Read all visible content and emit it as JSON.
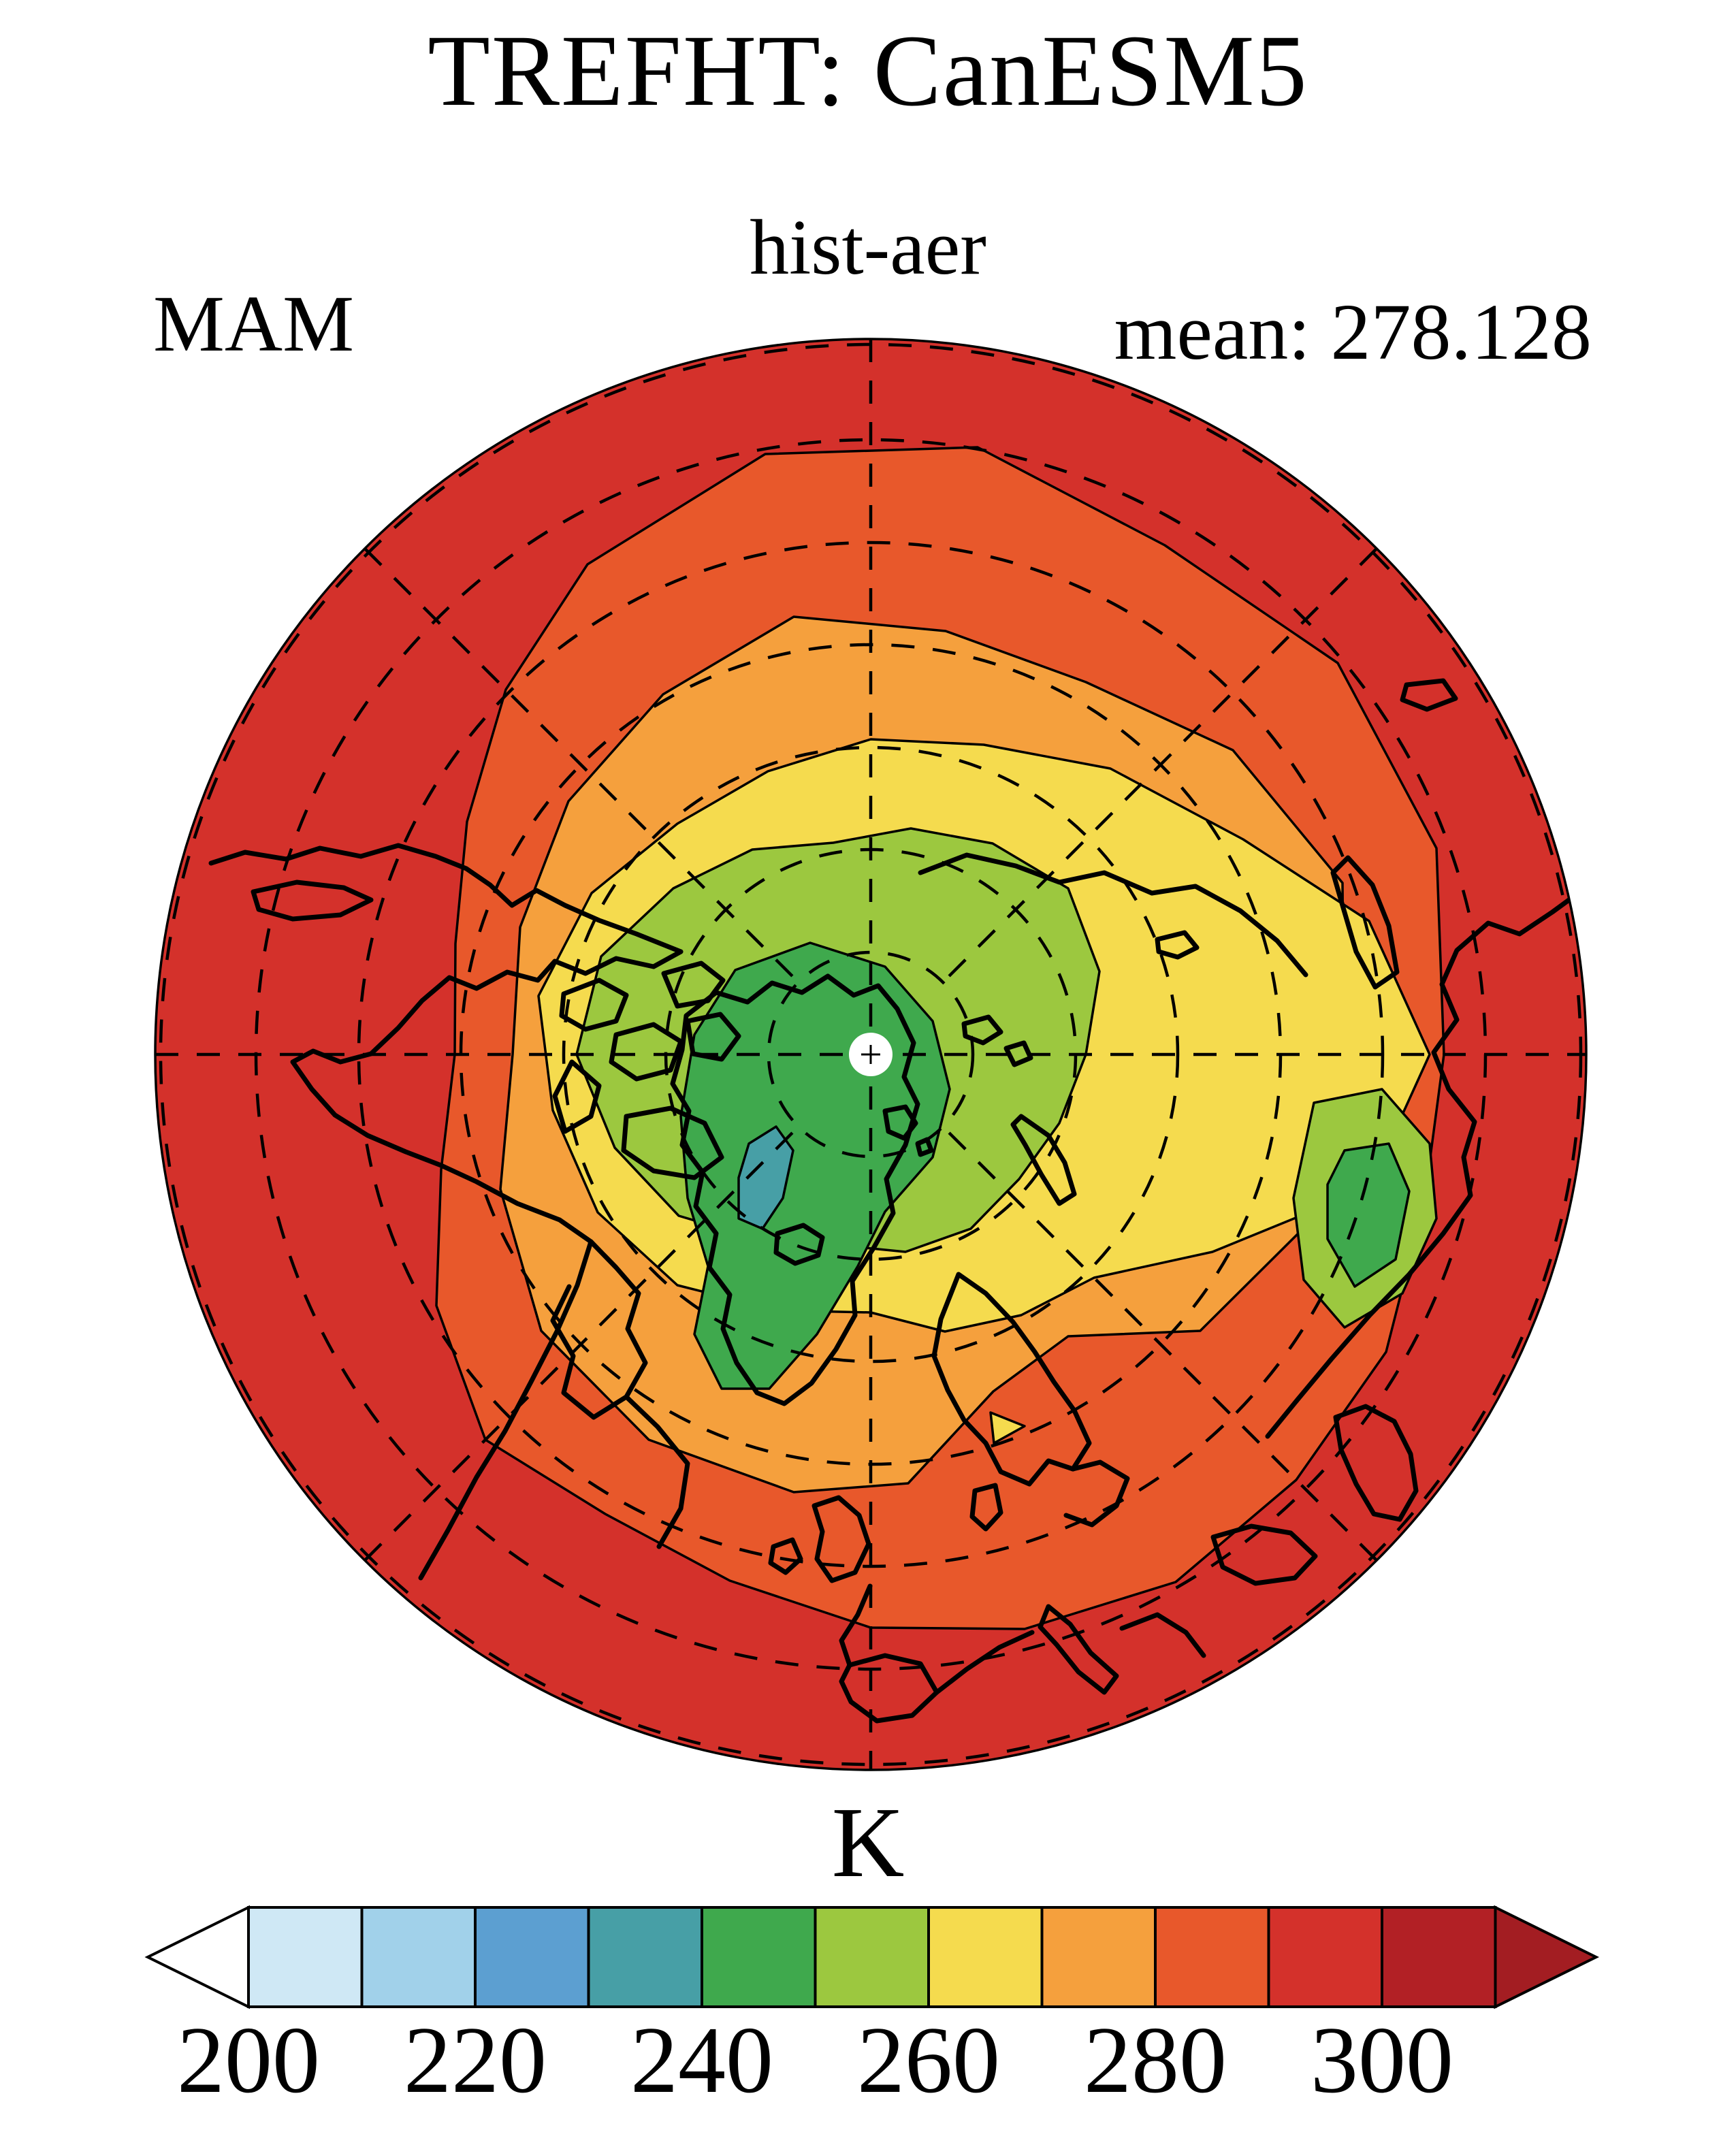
{
  "header": {
    "title": "TREFHT: CanESM5",
    "subtitle": "hist-aer",
    "season": "MAM",
    "mean_label": "mean: 278.128"
  },
  "colorbar": {
    "title": "K",
    "tick_labels": [
      "200",
      "220",
      "240",
      "260",
      "280",
      "300"
    ],
    "box_colors": [
      "#cfe8f5",
      "#a1d1ea",
      "#5c9fd1",
      "#479fa6",
      "#3fa94d",
      "#9cc83f",
      "#f5db4e",
      "#f5a03d",
      "#e8582b",
      "#d4312b",
      "#b22025"
    ],
    "under_color": "#ffffff",
    "over_color": "#a31d22",
    "outline_color": "#000000"
  },
  "palette": {
    "band_230_240": "#479fa6",
    "band_240_250": "#3fa94d",
    "band_250_260": "#9cc83f",
    "band_260_270": "#f5db4e",
    "band_270_280": "#f5a03d",
    "band_280_290": "#e8582b",
    "band_290_300": "#d4312b"
  },
  "chart_data": {
    "type": "filled_contour_map",
    "title": "TREFHT: CanESM5",
    "variable": "TREFHT",
    "model": "CanESM5",
    "experiment": "hist-aer",
    "season": "MAM",
    "mean": 278.128,
    "units": "K",
    "projection": "north_polar_stereographic",
    "grid": "dashed polar graticule, meridians every 45 deg, latitude circles every 10 deg",
    "legend_position": "bottom horizontal colorbar with triangular end caps",
    "contour_levels": [
      200,
      210,
      220,
      230,
      240,
      250,
      260,
      270,
      280,
      290,
      300,
      310
    ],
    "colorbar_ticks": [
      200,
      220,
      240,
      260,
      280,
      300
    ],
    "colorbar_colors": [
      "#cfe8f5",
      "#a1d1ea",
      "#5c9fd1",
      "#479fa6",
      "#3fa94d",
      "#9cc83f",
      "#f5db4e",
      "#f5a03d",
      "#e8582b",
      "#d4312b",
      "#b22025"
    ],
    "map_bands_center_outward": [
      {
        "range_K": "230-240",
        "color": "#479fa6",
        "region": "small cold patch over central Greenland"
      },
      {
        "range_K": "240-250",
        "color": "#3fa94d",
        "region": "inner Arctic around pole, Greenland and a pocket over the Sea of Okhotsk"
      },
      {
        "range_K": "250-260",
        "color": "#9cc83f",
        "region": "Arctic Ocean ring and eastern pocket"
      },
      {
        "range_K": "260-270",
        "color": "#f5db4e",
        "region": "subarctic ring, bulging east over Siberia"
      },
      {
        "range_K": "270-280",
        "color": "#f5a03d",
        "region": "mid-latitude ring incl. northern Europe"
      },
      {
        "range_K": "280-290",
        "color": "#e8582b",
        "region": "ring incl. Mediterranean Europe wedge"
      },
      {
        "range_K": "290-300",
        "color": "#d4312b",
        "region": "outermost ring to the ~20N map edge, widest over North Pacific"
      }
    ],
    "pole_marker": "white dot with small cross at North Pole"
  }
}
